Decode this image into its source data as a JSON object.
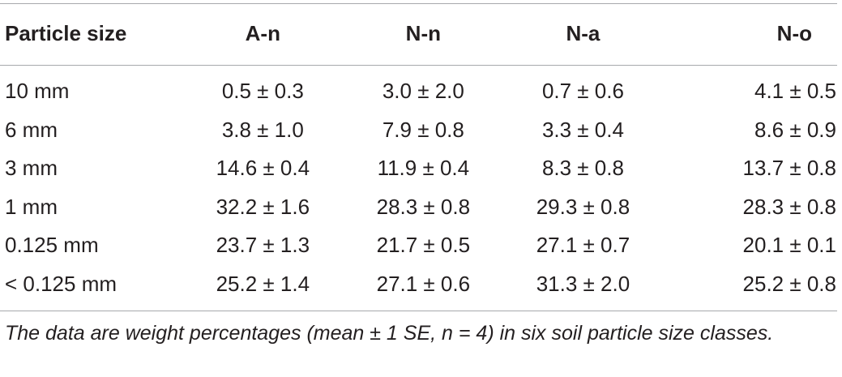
{
  "table": {
    "headers": [
      "Particle size",
      "A-n",
      "N-n",
      "N-a",
      "N-o"
    ],
    "rows": [
      [
        "10 mm",
        "0.5 ± 0.3",
        "3.0 ± 2.0",
        "0.7 ± 0.6",
        "4.1 ± 0.5"
      ],
      [
        "6 mm",
        "3.8 ± 1.0",
        "7.9 ± 0.8",
        "3.3 ± 0.4",
        "8.6 ± 0.9"
      ],
      [
        "3 mm",
        "14.6 ± 0.4",
        "11.9 ± 0.4",
        "8.3 ± 0.8",
        "13.7 ± 0.8"
      ],
      [
        "1 mm",
        "32.2 ± 1.6",
        "28.3 ± 0.8",
        "29.3 ± 0.8",
        "28.3 ± 0.8"
      ],
      [
        "0.125 mm",
        "23.7 ± 1.3",
        "21.7 ± 0.5",
        "27.1 ± 0.7",
        "20.1 ± 0.1"
      ],
      [
        "< 0.125 mm",
        "25.2 ± 1.4",
        "27.1 ± 0.6",
        "31.3 ± 2.0",
        "25.2 ± 0.8"
      ]
    ]
  },
  "footnote": "The data are weight percentages (mean ± 1 SE, n = 4) in six soil particle size classes."
}
